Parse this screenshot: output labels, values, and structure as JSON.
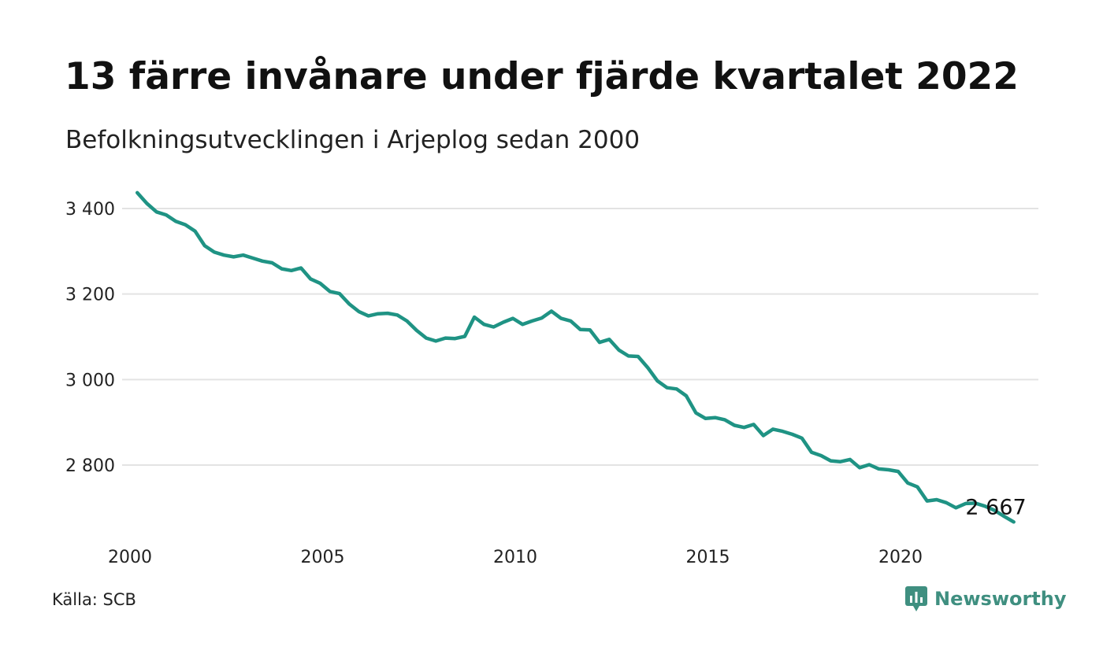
{
  "header": {
    "title": "13 färre invånare under fjärde kvartalet 2022",
    "subtitle": "Befolkningsutvecklingen i Arjeplog sedan 2000"
  },
  "footer": {
    "source": "Källa: SCB",
    "brand": "Newsworthy",
    "brand_icon": "newsworthy-logo-icon"
  },
  "colors": {
    "line": "#1f9384",
    "grid": "#e3e3e3",
    "brand": "#3f8f80"
  },
  "chart_data": {
    "type": "line",
    "title": "13 färre invånare under fjärde kvartalet 2022",
    "subtitle": "Befolkningsutvecklingen i Arjeplog sedan 2000",
    "xlabel": "",
    "ylabel": "",
    "x_ticks": [
      "2000",
      "2005",
      "2010",
      "2015",
      "2020"
    ],
    "y_ticks": [
      "2 800",
      "3 000",
      "3 200",
      "3 400"
    ],
    "y_tick_values": [
      2800,
      3000,
      3200,
      3400
    ],
    "xlim": [
      2000,
      2023.3
    ],
    "ylim": [
      2650,
      3450
    ],
    "grid": true,
    "end_label": "2 667",
    "series": [
      {
        "x": [
          2000.25,
          2000.5,
          2000.75,
          2001.0,
          2001.25,
          2001.5,
          2001.75,
          2002.0,
          2002.25,
          2002.5,
          2002.75,
          2003.0,
          2003.25,
          2003.5,
          2003.75,
          2004.0,
          2004.25,
          2004.5,
          2004.75,
          2005.0,
          2005.25,
          2005.5,
          2005.75,
          2006.0,
          2006.25,
          2006.5,
          2006.75,
          2007.0,
          2007.25,
          2007.5,
          2007.75,
          2008.0,
          2008.25,
          2008.5,
          2008.75,
          2009.0,
          2009.25,
          2009.5,
          2009.75,
          2010.0,
          2010.25,
          2010.5,
          2010.75,
          2011.0,
          2011.25,
          2011.5,
          2011.75,
          2012.0,
          2012.25,
          2012.5,
          2012.75,
          2013.0,
          2013.25,
          2013.5,
          2013.75,
          2014.0,
          2014.25,
          2014.5,
          2014.75,
          2015.0,
          2015.25,
          2015.5,
          2015.75,
          2016.0,
          2016.25,
          2016.5,
          2016.75,
          2017.0,
          2017.25,
          2017.5,
          2017.75,
          2018.0,
          2018.25,
          2018.5,
          2018.75,
          2019.0,
          2019.25,
          2019.5,
          2019.75,
          2020.0,
          2020.25,
          2020.5,
          2020.75,
          2021.0,
          2021.25,
          2021.5,
          2021.75,
          2022.0,
          2022.25,
          2022.5,
          2022.75,
          2023.0
        ],
        "values": [
          3437,
          3412,
          3392,
          3385,
          3370,
          3362,
          3347,
          3313,
          3298,
          3291,
          3287,
          3291,
          3284,
          3277,
          3273,
          3259,
          3255,
          3261,
          3235,
          3225,
          3206,
          3201,
          3177,
          3159,
          3149,
          3154,
          3155,
          3151,
          3137,
          3115,
          3097,
          3090,
          3097,
          3096,
          3101,
          3146,
          3129,
          3123,
          3134,
          3143,
          3129,
          3137,
          3144,
          3160,
          3143,
          3137,
          3117,
          3116,
          3087,
          3094,
          3069,
          3055,
          3054,
          3028,
          2997,
          2981,
          2978,
          2962,
          2922,
          2909,
          2911,
          2906,
          2893,
          2888,
          2895,
          2869,
          2884,
          2879,
          2872,
          2863,
          2830,
          2822,
          2810,
          2808,
          2813,
          2794,
          2801,
          2791,
          2789,
          2785,
          2758,
          2749,
          2716,
          2719,
          2712,
          2700,
          2710,
          2711,
          2704,
          2694,
          2680,
          2667
        ]
      }
    ]
  }
}
